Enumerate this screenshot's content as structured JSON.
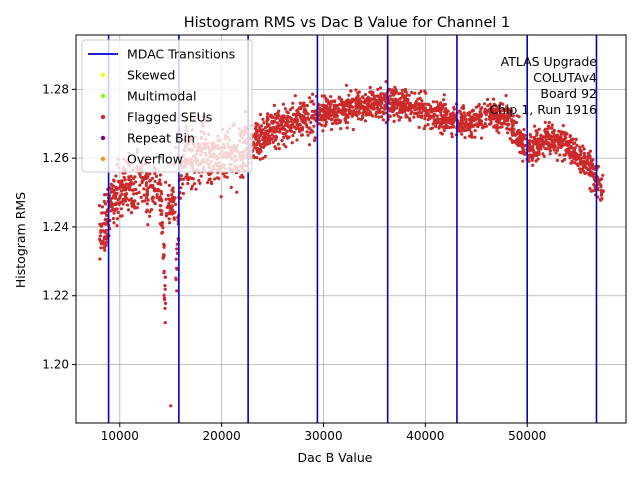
{
  "chart_data": {
    "type": "scatter",
    "title": "Histogram RMS vs Dac B Value for Channel 1",
    "xlabel": "Dac B Value",
    "ylabel": "Histogram RMS",
    "xlim": [
      5700,
      59700
    ],
    "ylim": [
      1.183,
      1.2958
    ],
    "xticks": [
      10000,
      20000,
      30000,
      40000,
      50000
    ],
    "xtick_labels": [
      "10000",
      "20000",
      "30000",
      "40000",
      "50000"
    ],
    "yticks": [
      1.2,
      1.22,
      1.24,
      1.26,
      1.28
    ],
    "ytick_labels": [
      "1.20",
      "1.22",
      "1.24",
      "1.26",
      "1.28"
    ],
    "grid": true,
    "legend_position": "top-left",
    "legend": [
      {
        "label": "MDAC Transitions",
        "kind": "line",
        "color": "#0000cc"
      },
      {
        "label": "Skewed",
        "kind": "point",
        "color": "#ffff00"
      },
      {
        "label": "Multimodal",
        "kind": "point",
        "color": "#7fff00"
      },
      {
        "label": "Flagged SEUs",
        "kind": "point",
        "color": "#d62728"
      },
      {
        "label": "Repeat Bin",
        "kind": "point",
        "color": "#800080"
      },
      {
        "label": "Overflow",
        "kind": "point",
        "color": "#ff8c00"
      }
    ],
    "annotation": [
      "ATLAS Upgrade",
      "COLUTAv4",
      "Board 92",
      "Chip 1, Run 1916"
    ],
    "mdac_transitions": [
      8900,
      15800,
      22600,
      29400,
      36300,
      43100,
      50000,
      56800
    ],
    "point_color": "#cc2a2a",
    "series": [
      {
        "name": "Histogram RMS",
        "x_range": [
          8000,
          57500
        ],
        "point_count": 2600,
        "approx_points": [
          [
            8000,
            1.238
          ],
          [
            9000,
            1.245
          ],
          [
            10000,
            1.25
          ],
          [
            12000,
            1.254
          ],
          [
            14000,
            1.25
          ],
          [
            15000,
            1.188
          ],
          [
            16000,
            1.258
          ],
          [
            18000,
            1.262
          ],
          [
            20000,
            1.26
          ],
          [
            22000,
            1.262
          ],
          [
            24000,
            1.266
          ],
          [
            26000,
            1.27
          ],
          [
            28000,
            1.271
          ],
          [
            30000,
            1.273
          ],
          [
            32000,
            1.274
          ],
          [
            34000,
            1.276
          ],
          [
            36000,
            1.276
          ],
          [
            38000,
            1.276
          ],
          [
            40000,
            1.274
          ],
          [
            42000,
            1.272
          ],
          [
            44000,
            1.27
          ],
          [
            46000,
            1.273
          ],
          [
            48000,
            1.272
          ],
          [
            50000,
            1.262
          ],
          [
            52000,
            1.266
          ],
          [
            54000,
            1.264
          ],
          [
            56000,
            1.258
          ],
          [
            57500,
            1.25
          ]
        ]
      }
    ]
  }
}
